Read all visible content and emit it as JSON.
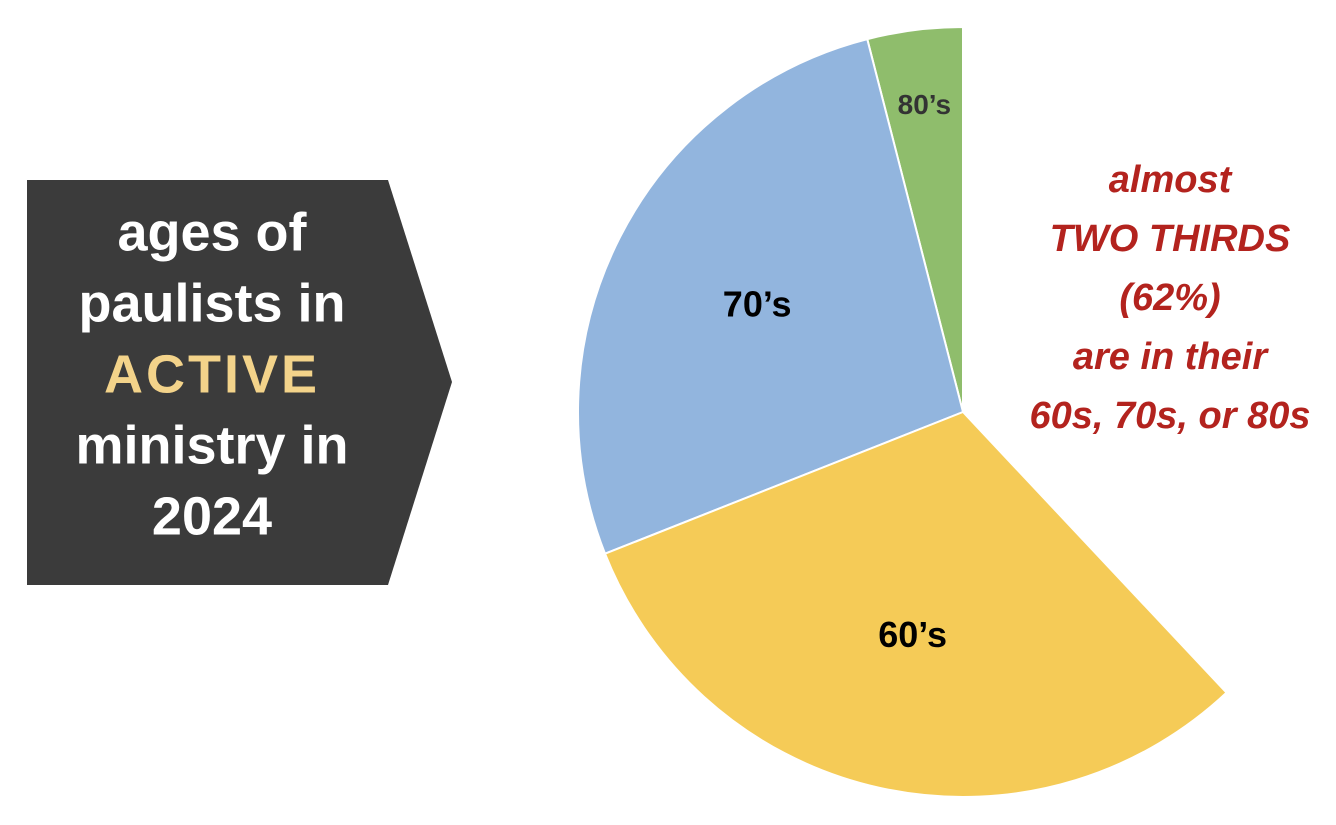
{
  "chart_data": {
    "type": "pie",
    "title_lines": [
      "ages of",
      "paulists in",
      "ACTIVE",
      "ministry in",
      "2024"
    ],
    "annotation_lines": [
      "almost",
      "TWO THIRDS",
      "(62%)",
      "are in their",
      "60s, 70s, or 80s"
    ],
    "categories": [
      "80’s",
      "70’s",
      "60’s"
    ],
    "values": [
      4,
      27,
      31
    ],
    "colors": [
      "#8fbd6c",
      "#92b5de",
      "#f5cb57"
    ],
    "start": "top",
    "direction": "counterclockwise"
  }
}
